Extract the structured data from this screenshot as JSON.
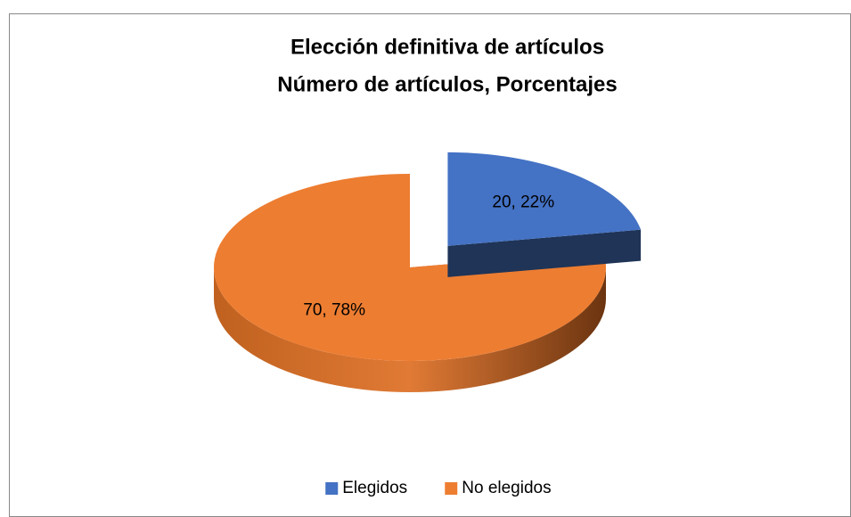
{
  "chart_data": {
    "type": "pie3d",
    "title": "Elección definitiva de artículos",
    "subtitle": "Número de artículos, Porcentajes",
    "categories": [
      "Elegidos",
      "No elegidos"
    ],
    "values": [
      20,
      70
    ],
    "value_labels": [
      "20, 22%",
      "70, 78%"
    ],
    "colors": [
      "#4472c4",
      "#ed7d31"
    ],
    "side_colors": [
      "#1f3457",
      "#a9521b"
    ],
    "exploded": [
      true,
      false
    ],
    "legend": "bottom"
  }
}
